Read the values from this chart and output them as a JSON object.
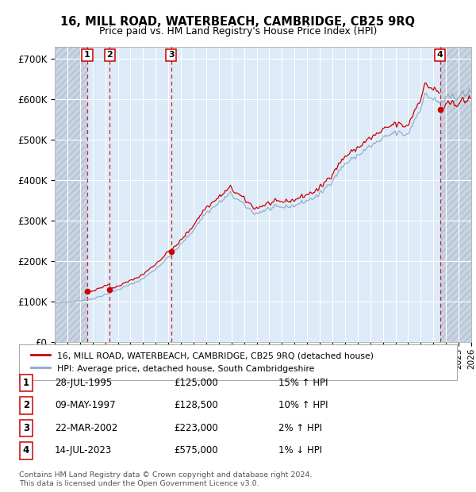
{
  "title": "16, MILL ROAD, WATERBEACH, CAMBRIDGE, CB25 9RQ",
  "subtitle": "Price paid vs. HM Land Registry's House Price Index (HPI)",
  "ylim": [
    0,
    730000
  ],
  "yticks": [
    0,
    100000,
    200000,
    300000,
    400000,
    500000,
    600000,
    700000
  ],
  "ytick_labels": [
    "£0",
    "£100K",
    "£200K",
    "£300K",
    "£400K",
    "£500K",
    "£600K",
    "£700K"
  ],
  "xlim_start": 1993.0,
  "xlim_end": 2026.0,
  "background_color": "#ffffff",
  "plot_bg_color": "#dce6f0",
  "grid_color": "#ffffff",
  "sale_color": "#cc0000",
  "hpi_color": "#88aacc",
  "purchases": [
    {
      "label": "1",
      "date_year": 1995.57,
      "price": 125000
    },
    {
      "label": "2",
      "date_year": 1997.36,
      "price": 128500
    },
    {
      "label": "3",
      "date_year": 2002.22,
      "price": 223000
    },
    {
      "label": "4",
      "date_year": 2023.53,
      "price": 575000
    }
  ],
  "legend_sale_label": "16, MILL ROAD, WATERBEACH, CAMBRIDGE, CB25 9RQ (detached house)",
  "legend_hpi_label": "HPI: Average price, detached house, South Cambridgeshire",
  "table_rows": [
    {
      "num": "1",
      "date": "28-JUL-1995",
      "price": "£125,000",
      "rel": "15% ↑ HPI"
    },
    {
      "num": "2",
      "date": "09-MAY-1997",
      "price": "£128,500",
      "rel": "10% ↑ HPI"
    },
    {
      "num": "3",
      "date": "22-MAR-2002",
      "price": "£223,000",
      "rel": "2% ↑ HPI"
    },
    {
      "num": "4",
      "date": "14-JUL-2023",
      "price": "£575,000",
      "rel": "1% ↓ HPI"
    }
  ],
  "footer": "Contains HM Land Registry data © Crown copyright and database right 2024.\nThis data is licensed under the Open Government Licence v3.0."
}
